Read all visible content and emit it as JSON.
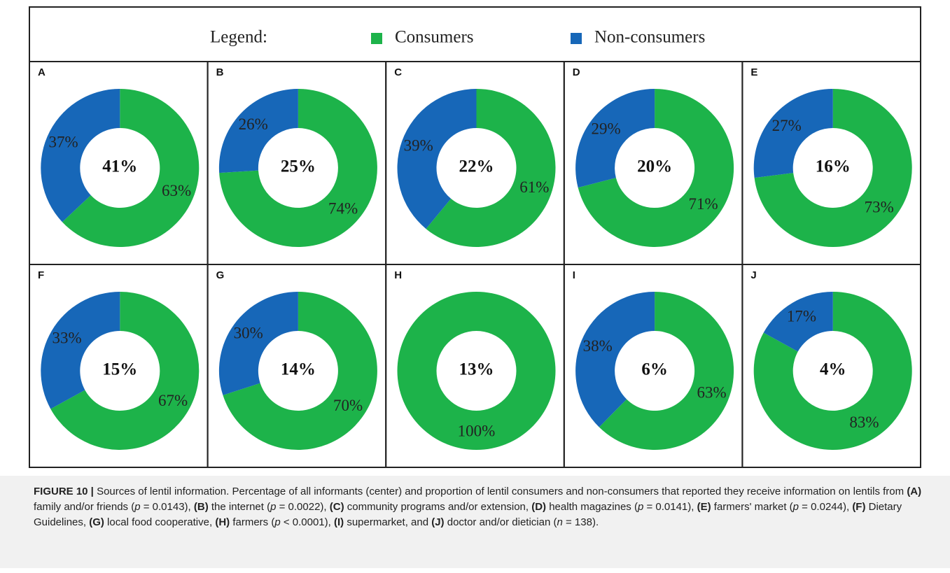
{
  "legend": {
    "title": "Legend:",
    "items": [
      {
        "name": "Consumers",
        "color": "#1db34a"
      },
      {
        "name": "Non-consumers",
        "color": "#1767b8"
      }
    ]
  },
  "chart_data": [
    {
      "type": "donut",
      "title": "A",
      "total": 41,
      "total_label": "41%",
      "values": [
        63,
        37
      ],
      "value_labels": [
        "63%",
        "37%"
      ]
    },
    {
      "type": "donut",
      "title": "B",
      "total": 25,
      "total_label": "25%",
      "values": [
        74,
        26
      ],
      "value_labels": [
        "74%",
        "26%"
      ]
    },
    {
      "type": "donut",
      "title": "C",
      "total": 22,
      "total_label": "22%",
      "values": [
        61,
        39
      ],
      "value_labels": [
        "61%",
        "39%"
      ]
    },
    {
      "type": "donut",
      "title": "D",
      "total": 20,
      "total_label": "20%",
      "values": [
        71,
        29
      ],
      "value_labels": [
        "71%",
        "29%"
      ]
    },
    {
      "type": "donut",
      "title": "E",
      "total": 16,
      "total_label": "16%",
      "values": [
        73,
        27
      ],
      "value_labels": [
        "73%",
        "27%"
      ]
    },
    {
      "type": "donut",
      "title": "F",
      "total": 15,
      "total_label": "15%",
      "values": [
        67,
        33
      ],
      "value_labels": [
        "67%",
        "33%"
      ]
    },
    {
      "type": "donut",
      "title": "G",
      "total": 14,
      "total_label": "14%",
      "values": [
        70,
        30
      ],
      "value_labels": [
        "70%",
        "30%"
      ]
    },
    {
      "type": "donut",
      "title": "H",
      "total": 13,
      "total_label": "13%",
      "values": [
        100,
        0
      ],
      "value_labels": [
        "100%",
        null
      ]
    },
    {
      "type": "donut",
      "title": "I",
      "total": 6,
      "total_label": "6%",
      "values": [
        63,
        38
      ],
      "value_labels": [
        "63%",
        "38%"
      ]
    },
    {
      "type": "donut",
      "title": "J",
      "total": 4,
      "total_label": "4%",
      "values": [
        83,
        17
      ],
      "value_labels": [
        "83%",
        "17%"
      ]
    }
  ],
  "caption": [
    {
      "text": "FIGURE 10 | ",
      "style": "b"
    },
    {
      "text": "Sources of lentil information. Percentage of all informants (center) and proportion of lentil consumers and non-consumers that reported they receive information on lentils from "
    },
    {
      "text": "(A)",
      "style": "b"
    },
    {
      "text": " family and/or friends ("
    },
    {
      "text": "p",
      "style": "i"
    },
    {
      "text": " = 0.0143), "
    },
    {
      "text": "(B)",
      "style": "b"
    },
    {
      "text": " the internet ("
    },
    {
      "text": "p",
      "style": "i"
    },
    {
      "text": " = 0.0022), "
    },
    {
      "text": "(C)",
      "style": "b"
    },
    {
      "text": " community programs and/or extension, "
    },
    {
      "text": "(D)",
      "style": "b"
    },
    {
      "text": " health magazines ("
    },
    {
      "text": "p",
      "style": "i"
    },
    {
      "text": " = 0.0141), "
    },
    {
      "text": "(E)",
      "style": "b"
    },
    {
      "text": " farmers' market ("
    },
    {
      "text": "p",
      "style": "i"
    },
    {
      "text": " = 0.0244), "
    },
    {
      "text": "(F)",
      "style": "b"
    },
    {
      "text": " Dietary Guidelines, "
    },
    {
      "text": "(G)",
      "style": "b"
    },
    {
      "text": " local food cooperative, "
    },
    {
      "text": "(H)",
      "style": "b"
    },
    {
      "text": " farmers ("
    },
    {
      "text": "p",
      "style": "i"
    },
    {
      "text": " < 0.0001), "
    },
    {
      "text": "(I)",
      "style": "b"
    },
    {
      "text": " supermarket, and "
    },
    {
      "text": "(J)",
      "style": "b"
    },
    {
      "text": " doctor and/or dietician ("
    },
    {
      "text": "n",
      "style": "i"
    },
    {
      "text": " = 138)."
    }
  ]
}
